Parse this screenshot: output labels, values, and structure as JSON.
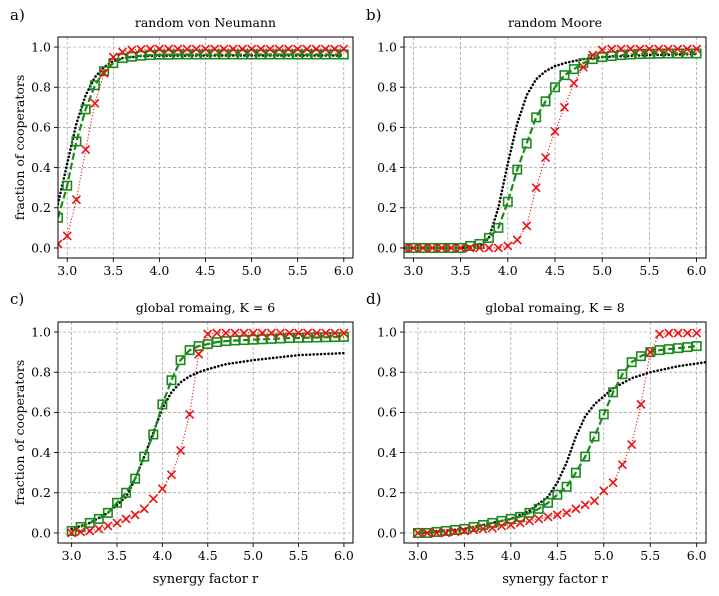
{
  "figure": {
    "panel_labels": [
      "a)",
      "b)",
      "c)",
      "d)"
    ],
    "ylabel": "fraction of cooperators",
    "xlabel": "synergy factor r"
  },
  "chart_data": [
    {
      "type": "line",
      "panel_label": "a)",
      "title": "random von Neumann",
      "xlabel": "",
      "ylabel": "fraction of cooperators",
      "xlim": [
        2.9,
        6.1
      ],
      "ylim": [
        -0.05,
        1.05
      ],
      "xticks": [
        "3.0",
        "3.5",
        "4.0",
        "4.5",
        "5.0",
        "5.5",
        "6.0"
      ],
      "yticks": [
        "0.0",
        "0.2",
        "0.4",
        "0.6",
        "0.8",
        "1.0"
      ],
      "grid": true,
      "series": [
        {
          "name": "dotted",
          "color": "#000000",
          "style": "dotted",
          "marker": "none",
          "x": [
            2.9,
            3.0,
            3.1,
            3.2,
            3.3,
            3.4,
            3.5,
            3.6,
            3.8,
            4.0,
            4.5,
            5.0,
            5.5,
            6.0
          ],
          "y": [
            0.22,
            0.42,
            0.62,
            0.76,
            0.85,
            0.9,
            0.93,
            0.945,
            0.955,
            0.957,
            0.958,
            0.958,
            0.958,
            0.958
          ]
        },
        {
          "name": "squares",
          "color": "#1a8a1a",
          "style": "dashed",
          "marker": "square",
          "x": [
            2.9,
            3.0,
            3.1,
            3.2,
            3.3,
            3.4,
            3.5,
            3.6,
            3.7,
            3.8,
            3.9,
            4.0,
            4.1,
            4.2,
            4.3,
            4.4,
            4.5,
            4.6,
            4.7,
            4.8,
            4.9,
            5.0,
            5.1,
            5.2,
            5.3,
            5.4,
            5.5,
            5.6,
            5.7,
            5.8,
            5.9,
            6.0
          ],
          "y": [
            0.15,
            0.31,
            0.53,
            0.69,
            0.81,
            0.88,
            0.92,
            0.945,
            0.952,
            0.957,
            0.96,
            0.962,
            0.962,
            0.963,
            0.963,
            0.963,
            0.963,
            0.963,
            0.963,
            0.963,
            0.963,
            0.963,
            0.963,
            0.963,
            0.963,
            0.963,
            0.963,
            0.963,
            0.963,
            0.963,
            0.963,
            0.963
          ]
        },
        {
          "name": "crosses",
          "color": "#ee1111",
          "style": "dotted",
          "marker": "x",
          "x": [
            2.9,
            3.0,
            3.1,
            3.2,
            3.3,
            3.4,
            3.5,
            3.6,
            3.7,
            3.8,
            3.9,
            4.0,
            4.1,
            4.2,
            4.3,
            4.4,
            4.5,
            4.6,
            4.7,
            4.8,
            4.9,
            5.0,
            5.1,
            5.2,
            5.3,
            5.4,
            5.5,
            5.6,
            5.7,
            5.8,
            5.9,
            6.0
          ],
          "y": [
            0.02,
            0.06,
            0.24,
            0.49,
            0.72,
            0.87,
            0.95,
            0.975,
            0.985,
            0.988,
            0.99,
            0.99,
            0.99,
            0.99,
            0.99,
            0.99,
            0.99,
            0.99,
            0.99,
            0.99,
            0.99,
            0.99,
            0.99,
            0.99,
            0.99,
            0.99,
            0.99,
            0.99,
            0.99,
            0.99,
            0.99,
            0.99
          ]
        }
      ]
    },
    {
      "type": "line",
      "panel_label": "b)",
      "title": "random Moore",
      "xlabel": "",
      "ylabel": "",
      "xlim": [
        2.9,
        6.1
      ],
      "ylim": [
        -0.05,
        1.05
      ],
      "xticks": [
        "3.0",
        "3.5",
        "4.0",
        "4.5",
        "5.0",
        "5.5",
        "6.0"
      ],
      "yticks": [
        "0.0",
        "0.2",
        "0.4",
        "0.6",
        "0.8",
        "1.0"
      ],
      "grid": true,
      "series": [
        {
          "name": "dotted",
          "color": "#000000",
          "style": "dotted",
          "marker": "none",
          "x": [
            2.9,
            3.5,
            3.7,
            3.8,
            3.9,
            4.0,
            4.1,
            4.2,
            4.3,
            4.4,
            4.5,
            4.6,
            4.8,
            5.0,
            5.5,
            6.0
          ],
          "y": [
            0.0,
            0.0,
            0.01,
            0.05,
            0.2,
            0.42,
            0.62,
            0.76,
            0.84,
            0.88,
            0.905,
            0.92,
            0.94,
            0.95,
            0.96,
            0.965
          ]
        },
        {
          "name": "squares",
          "color": "#1a8a1a",
          "style": "dashed",
          "marker": "square",
          "x": [
            2.9,
            3.0,
            3.1,
            3.2,
            3.3,
            3.4,
            3.5,
            3.6,
            3.7,
            3.8,
            3.9,
            4.0,
            4.1,
            4.2,
            4.3,
            4.4,
            4.5,
            4.6,
            4.7,
            4.8,
            4.9,
            5.0,
            5.1,
            5.2,
            5.3,
            5.4,
            5.5,
            5.6,
            5.7,
            5.8,
            5.9,
            6.0
          ],
          "y": [
            0.0,
            0.0,
            0.0,
            0.0,
            0.0,
            0.0,
            0.0,
            0.01,
            0.02,
            0.05,
            0.1,
            0.23,
            0.39,
            0.52,
            0.65,
            0.73,
            0.8,
            0.86,
            0.89,
            0.92,
            0.94,
            0.95,
            0.955,
            0.96,
            0.963,
            0.965,
            0.966,
            0.967,
            0.968,
            0.968,
            0.968,
            0.968
          ]
        },
        {
          "name": "crosses",
          "color": "#ee1111",
          "style": "dotted",
          "marker": "x",
          "x": [
            2.9,
            3.0,
            3.1,
            3.2,
            3.3,
            3.4,
            3.5,
            3.6,
            3.7,
            3.8,
            3.9,
            4.0,
            4.1,
            4.2,
            4.3,
            4.4,
            4.5,
            4.6,
            4.7,
            4.8,
            4.9,
            5.0,
            5.1,
            5.2,
            5.3,
            5.4,
            5.5,
            5.6,
            5.7,
            5.8,
            5.9,
            6.0
          ],
          "y": [
            0.0,
            0.0,
            0.0,
            0.0,
            0.0,
            0.0,
            0.0,
            0.0,
            0.0,
            0.0,
            0.0,
            0.01,
            0.04,
            0.11,
            0.3,
            0.45,
            0.58,
            0.7,
            0.82,
            0.9,
            0.96,
            0.985,
            0.99,
            0.99,
            0.99,
            0.99,
            0.99,
            0.99,
            0.99,
            0.99,
            0.99,
            0.99
          ]
        }
      ]
    },
    {
      "type": "line",
      "panel_label": "c)",
      "title": "global romaing, K = 6",
      "xlabel": "synergy factor r",
      "ylabel": "fraction of cooperators",
      "xlim": [
        2.85,
        6.1
      ],
      "ylim": [
        -0.05,
        1.05
      ],
      "xticks": [
        "3.0",
        "3.5",
        "4.0",
        "4.5",
        "5.0",
        "5.5",
        "6.0"
      ],
      "yticks": [
        "0.0",
        "0.2",
        "0.4",
        "0.6",
        "0.8",
        "1.0"
      ],
      "grid": true,
      "series": [
        {
          "name": "dotted",
          "color": "#000000",
          "style": "dotted",
          "marker": "none",
          "x": [
            3.0,
            3.2,
            3.4,
            3.6,
            3.7,
            3.8,
            3.9,
            4.0,
            4.1,
            4.2,
            4.3,
            4.4,
            4.5,
            4.7,
            5.0,
            5.5,
            6.0
          ],
          "y": [
            0.02,
            0.05,
            0.1,
            0.18,
            0.27,
            0.38,
            0.5,
            0.62,
            0.7,
            0.75,
            0.78,
            0.8,
            0.815,
            0.84,
            0.86,
            0.885,
            0.895
          ]
        },
        {
          "name": "squares",
          "color": "#1a8a1a",
          "style": "dashed",
          "marker": "square",
          "x": [
            3.0,
            3.1,
            3.2,
            3.3,
            3.4,
            3.5,
            3.6,
            3.7,
            3.8,
            3.9,
            4.0,
            4.1,
            4.2,
            4.3,
            4.4,
            4.5,
            4.6,
            4.7,
            4.8,
            4.9,
            5.0,
            5.1,
            5.2,
            5.3,
            5.4,
            5.5,
            5.6,
            5.7,
            5.8,
            5.9,
            6.0
          ],
          "y": [
            0.01,
            0.03,
            0.05,
            0.07,
            0.1,
            0.15,
            0.2,
            0.27,
            0.38,
            0.49,
            0.64,
            0.76,
            0.86,
            0.91,
            0.93,
            0.94,
            0.95,
            0.955,
            0.958,
            0.96,
            0.962,
            0.964,
            0.966,
            0.968,
            0.97,
            0.971,
            0.972,
            0.973,
            0.974,
            0.975,
            0.976
          ]
        },
        {
          "name": "crosses",
          "color": "#ee1111",
          "style": "dotted",
          "marker": "x",
          "x": [
            3.0,
            3.1,
            3.2,
            3.3,
            3.4,
            3.5,
            3.6,
            3.7,
            3.8,
            3.9,
            4.0,
            4.1,
            4.2,
            4.3,
            4.4,
            4.5,
            4.6,
            4.7,
            4.8,
            4.9,
            5.0,
            5.1,
            5.2,
            5.3,
            5.4,
            5.5,
            5.6,
            5.7,
            5.8,
            5.9,
            6.0
          ],
          "y": [
            0.0,
            0.005,
            0.01,
            0.02,
            0.035,
            0.05,
            0.07,
            0.09,
            0.12,
            0.17,
            0.22,
            0.29,
            0.41,
            0.59,
            0.89,
            0.99,
            0.995,
            0.995,
            0.995,
            0.995,
            0.995,
            0.995,
            0.995,
            0.995,
            0.995,
            0.995,
            0.995,
            0.995,
            0.995,
            0.995,
            0.995
          ]
        }
      ]
    },
    {
      "type": "line",
      "panel_label": "d)",
      "title": "global romaing, K = 8",
      "xlabel": "synergy factor r",
      "ylabel": "",
      "xlim": [
        2.85,
        6.1
      ],
      "ylim": [
        -0.05,
        1.05
      ],
      "xticks": [
        "3.0",
        "3.5",
        "4.0",
        "4.5",
        "5.0",
        "5.5",
        "6.0"
      ],
      "yticks": [
        "0.0",
        "0.2",
        "0.4",
        "0.6",
        "0.8",
        "1.0"
      ],
      "grid": true,
      "series": [
        {
          "name": "dotted",
          "color": "#000000",
          "style": "dotted",
          "marker": "none",
          "x": [
            3.0,
            3.5,
            4.0,
            4.2,
            4.4,
            4.5,
            4.6,
            4.7,
            4.8,
            4.9,
            5.0,
            5.1,
            5.3,
            5.5,
            5.8,
            6.1
          ],
          "y": [
            0.0,
            0.02,
            0.07,
            0.11,
            0.18,
            0.25,
            0.35,
            0.48,
            0.58,
            0.64,
            0.68,
            0.72,
            0.77,
            0.8,
            0.83,
            0.85
          ]
        },
        {
          "name": "squares",
          "color": "#1a8a1a",
          "style": "dashed",
          "marker": "square",
          "x": [
            3.0,
            3.1,
            3.2,
            3.3,
            3.4,
            3.5,
            3.6,
            3.7,
            3.8,
            3.9,
            4.0,
            4.1,
            4.2,
            4.3,
            4.4,
            4.5,
            4.6,
            4.7,
            4.8,
            4.9,
            5.0,
            5.1,
            5.2,
            5.3,
            5.4,
            5.5,
            5.6,
            5.7,
            5.8,
            5.9,
            6.0
          ],
          "y": [
            0.0,
            0.0,
            0.005,
            0.01,
            0.015,
            0.02,
            0.03,
            0.04,
            0.05,
            0.06,
            0.07,
            0.08,
            0.1,
            0.12,
            0.15,
            0.19,
            0.23,
            0.3,
            0.38,
            0.48,
            0.59,
            0.7,
            0.79,
            0.85,
            0.88,
            0.9,
            0.91,
            0.915,
            0.92,
            0.925,
            0.93
          ]
        },
        {
          "name": "crosses",
          "color": "#ee1111",
          "style": "dotted",
          "marker": "x",
          "x": [
            3.0,
            3.1,
            3.2,
            3.3,
            3.4,
            3.5,
            3.6,
            3.7,
            3.8,
            3.9,
            4.0,
            4.1,
            4.2,
            4.3,
            4.4,
            4.5,
            4.6,
            4.7,
            4.8,
            4.9,
            5.0,
            5.1,
            5.2,
            5.3,
            5.4,
            5.5,
            5.6,
            5.7,
            5.8,
            5.9,
            6.0
          ],
          "y": [
            0.0,
            0.0,
            0.0,
            0.0,
            0.005,
            0.01,
            0.015,
            0.02,
            0.025,
            0.035,
            0.04,
            0.05,
            0.06,
            0.07,
            0.08,
            0.09,
            0.1,
            0.12,
            0.14,
            0.16,
            0.21,
            0.25,
            0.34,
            0.44,
            0.64,
            0.9,
            0.99,
            0.995,
            0.995,
            0.995,
            0.995
          ]
        }
      ]
    }
  ]
}
